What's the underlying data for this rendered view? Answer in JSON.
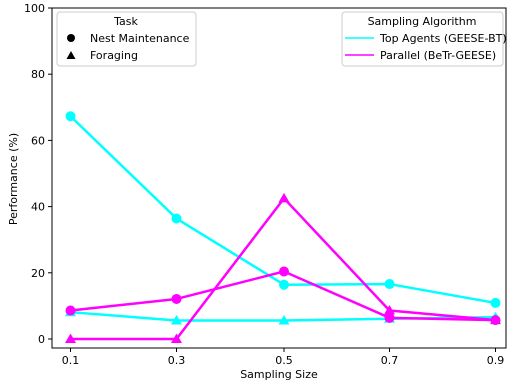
{
  "chart_data": {
    "type": "line",
    "title": "",
    "xlabel": "Sampling Size",
    "ylabel": "Performance (%)",
    "x": [
      0.1,
      0.3,
      0.5,
      0.7,
      0.9
    ],
    "x_tick_labels": [
      "0.1",
      "0.3",
      "0.5",
      "0.7",
      "0.9"
    ],
    "ylim": [
      0,
      100
    ],
    "y_ticks": [
      0,
      20,
      40,
      60,
      80,
      100
    ],
    "grid": false,
    "series": [
      {
        "algorithm": "Top Agents (GEESE-BT)",
        "task": "Nest Maintenance",
        "values": [
          67.3,
          36.4,
          16.4,
          16.6,
          10.9
        ]
      },
      {
        "algorithm": "Top Agents (GEESE-BT)",
        "task": "Foraging",
        "values": [
          8.1,
          5.6,
          5.6,
          6.1,
          6.6
        ]
      },
      {
        "algorithm": "Parallel (BeTr-GEESE)",
        "task": "Nest Maintenance",
        "values": [
          8.6,
          12.1,
          20.4,
          6.4,
          5.7
        ]
      },
      {
        "algorithm": "Parallel (BeTr-GEESE)",
        "task": "Foraging",
        "values": [
          0.0,
          0.0,
          42.5,
          8.6,
          5.7
        ]
      }
    ],
    "colors": {
      "Top Agents (GEESE-BT)": "#00ffff",
      "Parallel (BeTr-GEESE)": "#ff00ff"
    },
    "legend_task": {
      "title": "Task",
      "placement": "top-left",
      "entries": [
        {
          "label": "Nest Maintenance",
          "marker": "circle"
        },
        {
          "label": "Foraging",
          "marker": "triangle"
        }
      ]
    },
    "legend_algorithm": {
      "title": "Sampling Algorithm",
      "placement": "top-right",
      "entries": [
        {
          "label": "Top Agents (GEESE-BT)",
          "color": "#00ffff"
        },
        {
          "label": "Parallel (BeTr-GEESE)",
          "color": "#ff00ff"
        }
      ]
    }
  }
}
